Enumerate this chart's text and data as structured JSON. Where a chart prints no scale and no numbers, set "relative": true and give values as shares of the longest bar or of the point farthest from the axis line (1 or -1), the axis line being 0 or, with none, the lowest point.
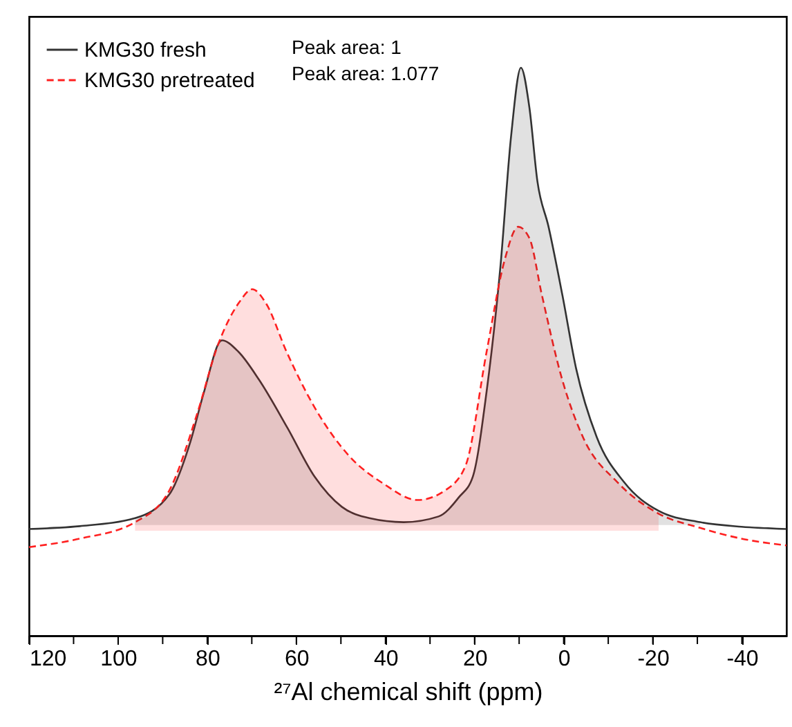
{
  "chart_data": {
    "type": "line",
    "relative": true,
    "xlabel": "²⁷Al chemical shift (ppm)",
    "xlim": [
      120,
      -50
    ],
    "xticks": [
      120,
      {
        "value": 110,
        "label": null
      },
      100,
      {
        "value": 90,
        "label": null
      },
      80,
      {
        "value": 70,
        "label": null
      },
      60,
      {
        "value": 50,
        "label": null
      },
      40,
      {
        "value": 30,
        "label": null
      },
      20,
      {
        "value": 10,
        "label": null
      },
      0,
      {
        "value": -10,
        "label": null
      },
      -20,
      {
        "value": -30,
        "label": null
      },
      -40
    ],
    "legend": "top left",
    "grid": false,
    "tick_labels": "x",
    "annotations": [
      "Peak area: 1",
      "Peak area: 1.077"
    ],
    "series": [
      {
        "name": "KMG30 fresh",
        "color": "#333333",
        "line_style": "solid",
        "x": [
          120,
          108.6,
          96.2,
          88.5,
          83.8,
          80.7,
          76.7,
          73,
          68.4,
          62,
          55.9,
          49.8,
          43.6,
          35.9,
          28.1,
          23.5,
          20.4,
          17.3,
          14.2,
          11.8,
          9.6,
          7.7,
          5.9,
          3.4,
          0.3,
          -2.8,
          -7.4,
          -13.6,
          -21.3,
          -30.6,
          -39.9,
          -50
        ],
        "values": [
          0.188,
          0.193,
          0.207,
          0.249,
          0.341,
          0.43,
          0.52,
          0.5,
          0.451,
          0.366,
          0.28,
          0.227,
          0.207,
          0.2,
          0.21,
          0.244,
          0.28,
          0.43,
          0.65,
          0.88,
          1.0,
          0.93,
          0.8,
          0.72,
          0.6,
          0.47,
          0.35,
          0.27,
          0.22,
          0.2,
          0.192,
          0.188
        ],
        "lower": [
          null,
          null,
          0.195,
          0.195,
          0.195,
          0.195,
          0.195,
          0.195,
          0.195,
          0.195,
          0.195,
          0.195,
          0.195,
          0.195,
          0.195,
          0.195,
          0.195,
          0.195,
          0.195,
          0.195,
          0.195,
          0.195,
          0.195,
          0.195,
          0.195,
          0.195,
          0.195,
          0.195,
          0.195,
          0.195,
          null,
          null
        ],
        "upper": [
          null,
          null,
          0.207,
          0.249,
          0.341,
          0.43,
          0.52,
          0.5,
          0.451,
          0.366,
          0.28,
          0.227,
          0.207,
          0.2,
          0.21,
          0.244,
          0.28,
          0.43,
          0.65,
          0.88,
          1.0,
          0.93,
          0.8,
          0.72,
          0.6,
          0.47,
          0.35,
          0.27,
          0.22,
          0.2,
          null,
          null
        ]
      },
      {
        "name": "KMG30 pretreated",
        "color": "#ff2020",
        "line_style": "dashed",
        "x": [
          120,
          108.6,
          96.2,
          88.5,
          82.3,
          77.6,
          73,
          69.9,
          66.8,
          62.2,
          55.9,
          48.2,
          40.5,
          32.8,
          26.6,
          22,
          17.3,
          13.3,
          10.2,
          7.7,
          4.9,
          0.3,
          -4.3,
          -12.1,
          -21.3,
          -30.6,
          -39.9,
          -50
        ],
        "values": [
          0.156,
          0.171,
          0.2,
          0.256,
          0.39,
          0.512,
          0.585,
          0.61,
          0.585,
          0.5,
          0.402,
          0.317,
          0.268,
          0.239,
          0.256,
          0.3,
          0.5,
          0.66,
          0.72,
          0.7,
          0.6,
          0.45,
          0.35,
          0.27,
          0.215,
          0.19,
          0.171,
          0.159
        ],
        "lower": [
          null,
          null,
          0.185,
          0.185,
          0.185,
          0.185,
          0.185,
          0.185,
          0.185,
          0.185,
          0.185,
          0.185,
          0.185,
          0.185,
          0.185,
          0.185,
          0.185,
          0.185,
          0.185,
          0.185,
          0.185,
          0.185,
          0.185,
          0.185,
          0.185,
          null,
          null,
          null
        ],
        "upper": [
          null,
          null,
          0.2,
          0.256,
          0.39,
          0.512,
          0.585,
          0.61,
          0.585,
          0.5,
          0.402,
          0.317,
          0.268,
          0.239,
          0.256,
          0.3,
          0.5,
          0.66,
          0.72,
          0.7,
          0.6,
          0.45,
          0.35,
          0.27,
          0.215,
          null,
          null,
          null
        ]
      }
    ]
  }
}
